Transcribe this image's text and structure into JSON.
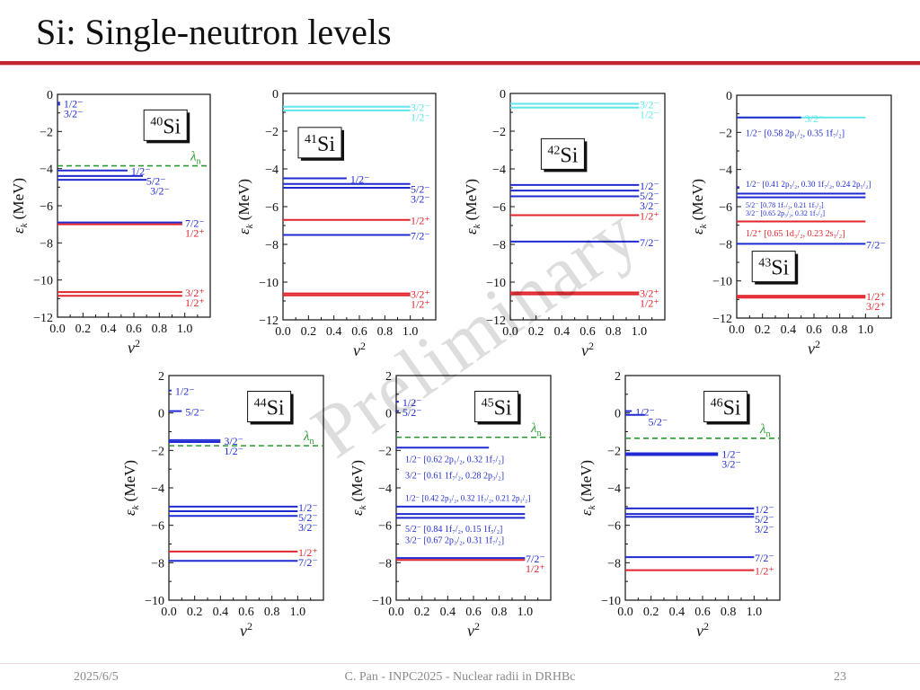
{
  "slide": {
    "title": "Si: Single-neutron levels",
    "footer_date": "2025/6/5",
    "footer_center": "C. Pan - INPC2025 - Nuclear radii in DRHBc",
    "page_number": "23",
    "watermark": "Preliminary"
  },
  "colors": {
    "title_rule": "#c0282d",
    "blue": "#1f2bd0",
    "red": "#e2242b",
    "cyan": "#5fe6ec",
    "green": "#2a9b30"
  },
  "chart_data": [
    {
      "type": "scatter",
      "nucleus_mass": "40",
      "nucleus_symbol": "Si",
      "xlabel": "v",
      "xlabel_sup": "2",
      "ylabel": "ε",
      "ylabel_sub": "k",
      "ylabel_unit": " (MeV)",
      "xlim": [
        0,
        1.2
      ],
      "ylim": [
        -12,
        0
      ],
      "x_ticks": [
        "0.0",
        "0.2",
        "0.4",
        "0.6",
        "0.8",
        "1.0"
      ],
      "y_ticks": [
        "0",
        "-2",
        "-4",
        "-6",
        "-8",
        "-10",
        "-12"
      ],
      "fermi": {
        "y": -3.85,
        "label": "λ",
        "label_sub": "n"
      },
      "levels": [
        {
          "energy": -0.45,
          "occupancy": 0.02,
          "color": "blue",
          "label": "1/2⁻"
        },
        {
          "energy": -0.55,
          "occupancy": 0.02,
          "color": "blue",
          "label": "3/2⁻"
        },
        {
          "energy": -4.1,
          "occupancy": 0.55,
          "color": "blue",
          "label": "1/2⁻"
        },
        {
          "energy": -4.4,
          "occupancy": 0.67,
          "color": "blue",
          "label": "5/2⁻"
        },
        {
          "energy": -4.6,
          "occupancy": 0.7,
          "color": "blue",
          "label": "3/2⁻"
        },
        {
          "energy": -6.9,
          "occupancy": 0.98,
          "color": "blue",
          "label": "7/2⁻"
        },
        {
          "energy": -7.0,
          "occupancy": 0.98,
          "color": "red",
          "label": "1/2⁺"
        },
        {
          "energy": -10.65,
          "occupancy": 0.98,
          "color": "red",
          "label": "3/2⁺"
        },
        {
          "energy": -10.85,
          "occupancy": 0.98,
          "color": "red",
          "label": "1/2⁺"
        }
      ]
    },
    {
      "type": "scatter",
      "nucleus_mass": "41",
      "nucleus_symbol": "Si",
      "xlabel": "v",
      "xlabel_sup": "2",
      "ylabel": "ε",
      "ylabel_sub": "k",
      "ylabel_unit": " (MeV)",
      "xlim": [
        0,
        1.2
      ],
      "ylim": [
        -12,
        0
      ],
      "x_ticks": [
        "0.0",
        "0.2",
        "0.4",
        "0.6",
        "0.8",
        "1.0"
      ],
      "y_ticks": [
        "0",
        "-2",
        "-4",
        "-6",
        "-8",
        "-10",
        "-12"
      ],
      "fermi": null,
      "levels": [
        {
          "energy": -0.7,
          "occupancy": 1.0,
          "color": "cyan",
          "label": "3/2⁻"
        },
        {
          "energy": -0.9,
          "occupancy": 1.0,
          "color": "cyan",
          "label": "1/2⁻"
        },
        {
          "energy": -4.5,
          "occupancy": 0.5,
          "color": "blue",
          "label": "1/2⁻"
        },
        {
          "energy": -4.8,
          "occupancy": 1.0,
          "color": "blue",
          "label": "5/2⁻"
        },
        {
          "energy": -5.0,
          "occupancy": 1.0,
          "color": "blue",
          "label": "3/2⁻"
        },
        {
          "energy": -6.7,
          "occupancy": 1.0,
          "color": "red",
          "label": "1/2⁺"
        },
        {
          "energy": -7.5,
          "occupancy": 1.0,
          "color": "blue",
          "label": "7/2⁻"
        },
        {
          "energy": -10.6,
          "occupancy": 1.0,
          "color": "red",
          "label": "3/2⁺"
        },
        {
          "energy": -10.7,
          "occupancy": 1.0,
          "color": "red",
          "label": "1/2⁺"
        }
      ]
    },
    {
      "type": "scatter",
      "nucleus_mass": "42",
      "nucleus_symbol": "Si",
      "xlabel": "v",
      "xlabel_sup": "2",
      "ylabel": "ε",
      "ylabel_sub": "k",
      "ylabel_unit": " (MeV)",
      "xlim": [
        0,
        1.2
      ],
      "ylim": [
        -12,
        0
      ],
      "x_ticks": [
        "0.0",
        "0.2",
        "0.4",
        "0.6",
        "0.8",
        "1.0"
      ],
      "y_ticks": [
        "0",
        "-2",
        "-4",
        "-6",
        "-8",
        "-10",
        "-12"
      ],
      "fermi": null,
      "levels": [
        {
          "energy": -0.55,
          "occupancy": 1.0,
          "color": "cyan",
          "label": "3/2⁻"
        },
        {
          "energy": -0.75,
          "occupancy": 1.0,
          "color": "cyan",
          "label": "1/2⁻"
        },
        {
          "energy": -4.85,
          "occupancy": 1.0,
          "color": "blue",
          "label": "1/2⁻"
        },
        {
          "energy": -5.15,
          "occupancy": 1.0,
          "color": "blue",
          "label": "5/2⁻"
        },
        {
          "energy": -5.45,
          "occupancy": 1.0,
          "color": "blue",
          "label": "3/2⁻"
        },
        {
          "energy": -6.45,
          "occupancy": 1.0,
          "color": "red",
          "label": "1/2⁺"
        },
        {
          "energy": -7.85,
          "occupancy": 1.0,
          "color": "blue",
          "label": "7/2⁻"
        },
        {
          "energy": -10.55,
          "occupancy": 1.0,
          "color": "red",
          "label": "3/2⁺"
        },
        {
          "energy": -10.65,
          "occupancy": 1.0,
          "color": "red",
          "label": "1/2⁺"
        }
      ]
    },
    {
      "type": "scatter",
      "nucleus_mass": "43",
      "nucleus_symbol": "Si",
      "xlabel": "v",
      "xlabel_sup": "2",
      "ylabel": "ε",
      "ylabel_sub": "k",
      "ylabel_unit": " (MeV)",
      "xlim": [
        0,
        1.2
      ],
      "ylim": [
        -12,
        0
      ],
      "x_ticks": [
        "0.0",
        "0.2",
        "0.4",
        "0.6",
        "0.8",
        "1.0"
      ],
      "y_ticks": [
        "0",
        "-2",
        "-4",
        "-6",
        "-8",
        "-10",
        "-12"
      ],
      "fermi": null,
      "levels": [
        {
          "energy": -1.2,
          "occupancy": 0.5,
          "color": "blue",
          "label": "3/2⁻",
          "label_color": "cyan",
          "extend": "cyan"
        },
        {
          "energy": -4.95,
          "occupancy": 0.02,
          "color": "blue",
          "label": ""
        },
        {
          "energy": -5.3,
          "occupancy": 1.0,
          "color": "blue",
          "label": ""
        },
        {
          "energy": -5.5,
          "occupancy": 1.0,
          "color": "blue",
          "label": ""
        },
        {
          "energy": -6.8,
          "occupancy": 1.0,
          "color": "red",
          "label": ""
        },
        {
          "energy": -8.0,
          "occupancy": 1.0,
          "color": "blue",
          "label": "7/2⁻"
        },
        {
          "energy": -10.8,
          "occupancy": 1.0,
          "color": "red",
          "label": "1/2⁺"
        },
        {
          "energy": -10.9,
          "occupancy": 1.0,
          "color": "red",
          "label": "3/2⁺"
        }
      ],
      "annotations": [
        {
          "text": "1/2⁻ [0.58 2p₁/₂, 0.35 1f₇/₂]",
          "energy": -2.0,
          "color": "blue",
          "size": 10
        },
        {
          "text": "1/2⁻ [0.41 2p₃/₂, 0.30 1f₇/₂, 0.24 2p₁/₂]",
          "energy": -4.75,
          "color": "blue",
          "size": 9
        },
        {
          "text": "5/2⁻ [0.78 1f₇/₂, 0.21 1f₅/₂]",
          "energy": -5.85,
          "color": "blue",
          "size": 8
        },
        {
          "text": "3/2⁻ [0.65 2p₃/₂, 0.32 1f₇/₂]",
          "energy": -6.3,
          "color": "blue",
          "size": 8
        },
        {
          "text": "1/2⁺ [0.65 1d₃/₂, 0.23 2s₁/₂]",
          "energy": -7.4,
          "color": "red",
          "size": 10
        }
      ]
    },
    {
      "type": "scatter",
      "nucleus_mass": "44",
      "nucleus_symbol": "Si",
      "xlabel": "v",
      "xlabel_sup": "2",
      "ylabel": "ε",
      "ylabel_sub": "k",
      "ylabel_unit": " (MeV)",
      "xlim": [
        0,
        1.2
      ],
      "ylim": [
        -10,
        2
      ],
      "x_ticks": [
        "0.0",
        "0.2",
        "0.4",
        "0.6",
        "0.8",
        "1.0"
      ],
      "y_ticks": [
        "2",
        "0",
        "-2",
        "-4",
        "-6",
        "-8",
        "-10"
      ],
      "fermi": {
        "y": -1.75,
        "label": "λ",
        "label_sub": "n"
      },
      "levels": [
        {
          "energy": 1.2,
          "occupancy": 0.02,
          "color": "blue",
          "label": "1/2⁻"
        },
        {
          "energy": 0.1,
          "occupancy": 0.1,
          "color": "blue",
          "label": "5/2⁻"
        },
        {
          "energy": -1.45,
          "occupancy": 0.4,
          "color": "blue",
          "label": "3/2⁻"
        },
        {
          "energy": -1.55,
          "occupancy": 0.4,
          "color": "blue",
          "label": "1/2⁻"
        },
        {
          "energy": -5.0,
          "occupancy": 1.0,
          "color": "blue",
          "label": "1/2⁻"
        },
        {
          "energy": -5.25,
          "occupancy": 1.0,
          "color": "blue",
          "label": "5/2⁻"
        },
        {
          "energy": -5.5,
          "occupancy": 1.0,
          "color": "blue",
          "label": "3/2⁻"
        },
        {
          "energy": -7.4,
          "occupancy": 1.0,
          "color": "red",
          "label": "1/2⁺"
        },
        {
          "energy": -7.9,
          "occupancy": 1.0,
          "color": "blue",
          "label": "7/2⁻"
        }
      ]
    },
    {
      "type": "scatter",
      "nucleus_mass": "45",
      "nucleus_symbol": "Si",
      "xlabel": "v",
      "xlabel_sup": "2",
      "ylabel": "ε",
      "ylabel_sub": "k",
      "ylabel_unit": " (MeV)",
      "xlim": [
        0,
        1.2
      ],
      "ylim": [
        -10,
        2
      ],
      "x_ticks": [
        "0.0",
        "0.2",
        "0.4",
        "0.6",
        "0.8",
        "1.0"
      ],
      "y_ticks": [
        "2",
        "0",
        "-2",
        "-4",
        "-6",
        "-8",
        "-10"
      ],
      "fermi": {
        "y": -1.3,
        "label": "λ",
        "label_sub": "n"
      },
      "levels": [
        {
          "energy": 0.6,
          "occupancy": 0.02,
          "color": "blue",
          "label": "1/2⁻"
        },
        {
          "energy": 0.1,
          "occupancy": 0.02,
          "color": "blue",
          "label": "5/2⁻"
        },
        {
          "energy": -1.85,
          "occupancy": 0.72,
          "color": "blue",
          "label": ""
        },
        {
          "energy": -5.0,
          "occupancy": 1.0,
          "color": "blue",
          "label": ""
        },
        {
          "energy": -5.4,
          "occupancy": 1.0,
          "color": "blue",
          "label": ""
        },
        {
          "energy": -5.6,
          "occupancy": 1.0,
          "color": "blue",
          "label": ""
        },
        {
          "energy": -7.75,
          "occupancy": 1.0,
          "color": "blue",
          "label": "7/2⁻"
        },
        {
          "energy": -7.85,
          "occupancy": 1.0,
          "color": "red",
          "label": "1/2⁺"
        }
      ],
      "annotations": [
        {
          "text": "1/2⁻ [0.62 2p₁/₂, 0.32 1f₇/₂]",
          "energy": -2.45,
          "color": "blue",
          "size": 10
        },
        {
          "text": "3/2⁻ [0.61 1f₇/₂, 0.28 2p₃/₂]",
          "energy": -3.3,
          "color": "blue",
          "size": 10
        },
        {
          "text": "1/2⁻ [0.42 2p₃/₂, 0.32 1f₇/₂, 0.21 2p₁/₂]",
          "energy": -4.5,
          "color": "blue",
          "size": 9
        },
        {
          "text": "5/2⁻ [0.84 1f₇/₂, 0.15 1f₅/₂]",
          "energy": -6.15,
          "color": "blue",
          "size": 10
        },
        {
          "text": "3/2⁻ [0.67 2p₃/₂, 0.31 1f₇/₂]",
          "energy": -6.75,
          "color": "blue",
          "size": 10
        }
      ]
    },
    {
      "type": "scatter",
      "nucleus_mass": "46",
      "nucleus_symbol": "Si",
      "xlabel": "v",
      "xlabel_sup": "2",
      "ylabel": "ε",
      "ylabel_sub": "k",
      "ylabel_unit": " (MeV)",
      "xlim": [
        0,
        1.2
      ],
      "ylim": [
        -10,
        2
      ],
      "x_ticks": [
        "0.0",
        "0.2",
        "0.4",
        "0.6",
        "0.8",
        "1.0"
      ],
      "y_ticks": [
        "2",
        "0",
        "-2",
        "-4",
        "-6",
        "-8",
        "-10"
      ],
      "fermi": {
        "y": -1.35,
        "label": "λ",
        "label_sub": "n"
      },
      "levels": [
        {
          "energy": 0.1,
          "occupancy": 0.05,
          "color": "blue",
          "label": "1/2⁻"
        },
        {
          "energy": -0.1,
          "occupancy": 0.15,
          "color": "blue",
          "label": "5/2⁻"
        },
        {
          "energy": -2.15,
          "occupancy": 0.72,
          "color": "blue",
          "label": "1/2⁻"
        },
        {
          "energy": -2.25,
          "occupancy": 0.72,
          "color": "blue",
          "label": "3/2⁻"
        },
        {
          "energy": -5.1,
          "occupancy": 1.0,
          "color": "blue",
          "label": "1/2⁻"
        },
        {
          "energy": -5.4,
          "occupancy": 1.0,
          "color": "blue",
          "label": "5/2⁻"
        },
        {
          "energy": -5.55,
          "occupancy": 1.0,
          "color": "blue",
          "label": "3/2⁻"
        },
        {
          "energy": -7.7,
          "occupancy": 1.0,
          "color": "blue",
          "label": "7/2⁻"
        },
        {
          "energy": -8.4,
          "occupancy": 1.0,
          "color": "red",
          "label": "1/2⁺"
        }
      ]
    }
  ]
}
